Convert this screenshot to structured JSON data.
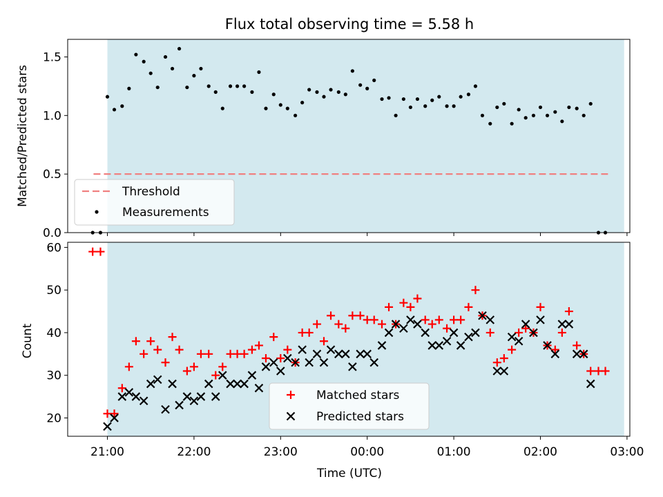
{
  "title": "Flux total observing time = 5.58 h",
  "xlabel": "Time (UTC)",
  "colors": {
    "shade": "#d3e9ef",
    "threshold": "#f08080",
    "matched": "#ff0000",
    "predicted": "#000000",
    "measure": "#000000"
  },
  "chart_data": [
    {
      "type": "scatter",
      "ylabel": "Matched/Predicted stars",
      "ylim": [
        0,
        1.65
      ],
      "yticks": [
        "0.0",
        "0.5",
        "1.0",
        "1.5"
      ],
      "xlim_hours": [
        20.5,
        27.05
      ],
      "shaded_interval": [
        "21:00",
        "26:58"
      ],
      "threshold": {
        "name": "Threshold",
        "value": 0.5,
        "x_range": [
          20.84,
          26.78
        ]
      },
      "legend": [
        "Threshold",
        "Measurements"
      ],
      "legend_position": "lower-left",
      "series": [
        {
          "name": "Measurements",
          "x": [
            20.83,
            20.92,
            21.0,
            21.08,
            21.17,
            21.25,
            21.33,
            21.42,
            21.5,
            21.58,
            21.67,
            21.75,
            21.83,
            21.92,
            22.0,
            22.08,
            22.17,
            22.25,
            22.33,
            22.42,
            22.5,
            22.58,
            22.67,
            22.75,
            22.83,
            22.92,
            23.0,
            23.08,
            23.17,
            23.25,
            23.33,
            23.42,
            23.5,
            23.58,
            23.67,
            23.75,
            23.83,
            23.92,
            24.0,
            24.08,
            24.17,
            24.25,
            24.33,
            24.42,
            24.5,
            24.58,
            24.67,
            24.75,
            24.83,
            24.92,
            25.0,
            25.08,
            25.17,
            25.25,
            25.33,
            25.42,
            25.5,
            25.58,
            25.67,
            25.75,
            25.83,
            25.92,
            26.0,
            26.08,
            26.17,
            26.25,
            26.33,
            26.42,
            26.5,
            26.58,
            26.67,
            26.75
          ],
          "y": [
            0.0,
            0.0,
            1.16,
            1.05,
            1.08,
            1.23,
            1.52,
            1.46,
            1.36,
            1.24,
            1.5,
            1.4,
            1.57,
            1.24,
            1.34,
            1.4,
            1.25,
            1.2,
            1.06,
            1.25,
            1.25,
            1.25,
            1.2,
            1.37,
            1.06,
            1.18,
            1.09,
            1.06,
            1.0,
            1.11,
            1.22,
            1.2,
            1.16,
            1.22,
            1.2,
            1.18,
            1.38,
            1.26,
            1.23,
            1.3,
            1.14,
            1.15,
            1.0,
            1.14,
            1.07,
            1.14,
            1.08,
            1.13,
            1.16,
            1.08,
            1.08,
            1.16,
            1.18,
            1.25,
            1.0,
            0.93,
            1.07,
            1.1,
            0.93,
            1.05,
            0.98,
            1.0,
            1.07,
            1.0,
            1.03,
            0.95,
            1.07,
            1.06,
            1.0,
            1.1,
            0.0,
            0.0
          ]
        }
      ]
    },
    {
      "type": "scatter",
      "ylabel": "Count",
      "ylim": [
        15.7,
        61.2
      ],
      "yticks": [
        "20",
        "30",
        "40",
        "50",
        "60"
      ],
      "xlim_hours": [
        20.5,
        27.05
      ],
      "xticks": [
        "21:00",
        "22:00",
        "23:00",
        "00:00",
        "01:00",
        "02:00",
        "03:00"
      ],
      "shaded_interval": [
        "21:00",
        "26:58"
      ],
      "legend": [
        "Matched stars",
        "Predicted stars"
      ],
      "legend_position": "lower-center",
      "series": [
        {
          "name": "Matched stars",
          "x": [
            20.83,
            20.92,
            21.0,
            21.08,
            21.17,
            21.25,
            21.33,
            21.42,
            21.5,
            21.58,
            21.67,
            21.75,
            21.83,
            21.92,
            22.0,
            22.08,
            22.17,
            22.25,
            22.33,
            22.42,
            22.5,
            22.58,
            22.67,
            22.75,
            22.83,
            22.92,
            23.0,
            23.08,
            23.17,
            23.25,
            23.33,
            23.42,
            23.5,
            23.58,
            23.67,
            23.75,
            23.83,
            23.92,
            24.0,
            24.08,
            24.17,
            24.25,
            24.33,
            24.42,
            24.5,
            24.58,
            24.67,
            24.75,
            24.83,
            24.92,
            25.0,
            25.08,
            25.17,
            25.25,
            25.33,
            25.42,
            25.5,
            25.58,
            25.67,
            25.75,
            25.83,
            25.92,
            26.0,
            26.08,
            26.17,
            26.25,
            26.33,
            26.42,
            26.5,
            26.58,
            26.67,
            26.75
          ],
          "y": [
            59,
            59,
            21,
            21,
            27,
            32,
            38,
            35,
            38,
            36,
            33,
            39,
            36,
            31,
            32,
            35,
            35,
            30,
            32,
            35,
            35,
            35,
            36,
            37,
            34,
            39,
            34,
            36,
            33,
            40,
            40,
            42,
            38,
            44,
            42,
            41,
            44,
            44,
            43,
            43,
            42,
            46,
            42,
            47,
            46,
            48,
            43,
            42,
            43,
            41,
            43,
            43,
            46,
            50,
            44,
            40,
            33,
            34,
            36,
            40,
            41,
            40,
            46,
            37,
            36,
            40,
            45,
            37,
            35,
            31,
            31,
            31
          ]
        },
        {
          "name": "Predicted stars",
          "x": [
            21.0,
            21.08,
            21.17,
            21.25,
            21.33,
            21.42,
            21.5,
            21.58,
            21.67,
            21.75,
            21.83,
            21.92,
            22.0,
            22.08,
            22.17,
            22.25,
            22.33,
            22.42,
            22.5,
            22.58,
            22.67,
            22.75,
            22.83,
            22.92,
            23.0,
            23.08,
            23.17,
            23.25,
            23.33,
            23.42,
            23.5,
            23.58,
            23.67,
            23.75,
            23.83,
            23.92,
            24.0,
            24.08,
            24.17,
            24.25,
            24.33,
            24.42,
            24.5,
            24.58,
            24.67,
            24.75,
            24.83,
            24.92,
            25.0,
            25.08,
            25.17,
            25.25,
            25.33,
            25.42,
            25.5,
            25.58,
            25.67,
            25.75,
            25.83,
            25.92,
            26.0,
            26.08,
            26.17,
            26.25,
            26.33,
            26.42,
            26.5,
            26.58
          ],
          "y": [
            18,
            20,
            25,
            26,
            25,
            24,
            28,
            29,
            22,
            28,
            23,
            25,
            24,
            25,
            28,
            25,
            30,
            28,
            28,
            28,
            30,
            27,
            32,
            33,
            31,
            34,
            33,
            36,
            33,
            35,
            33,
            36,
            35,
            35,
            32,
            35,
            35,
            33,
            37,
            40,
            42,
            41,
            43,
            42,
            40,
            37,
            37,
            38,
            40,
            37,
            39,
            40,
            44,
            43,
            31,
            31,
            39,
            38,
            42,
            40,
            43,
            37,
            35,
            42,
            42,
            35,
            35,
            28
          ]
        }
      ]
    }
  ]
}
